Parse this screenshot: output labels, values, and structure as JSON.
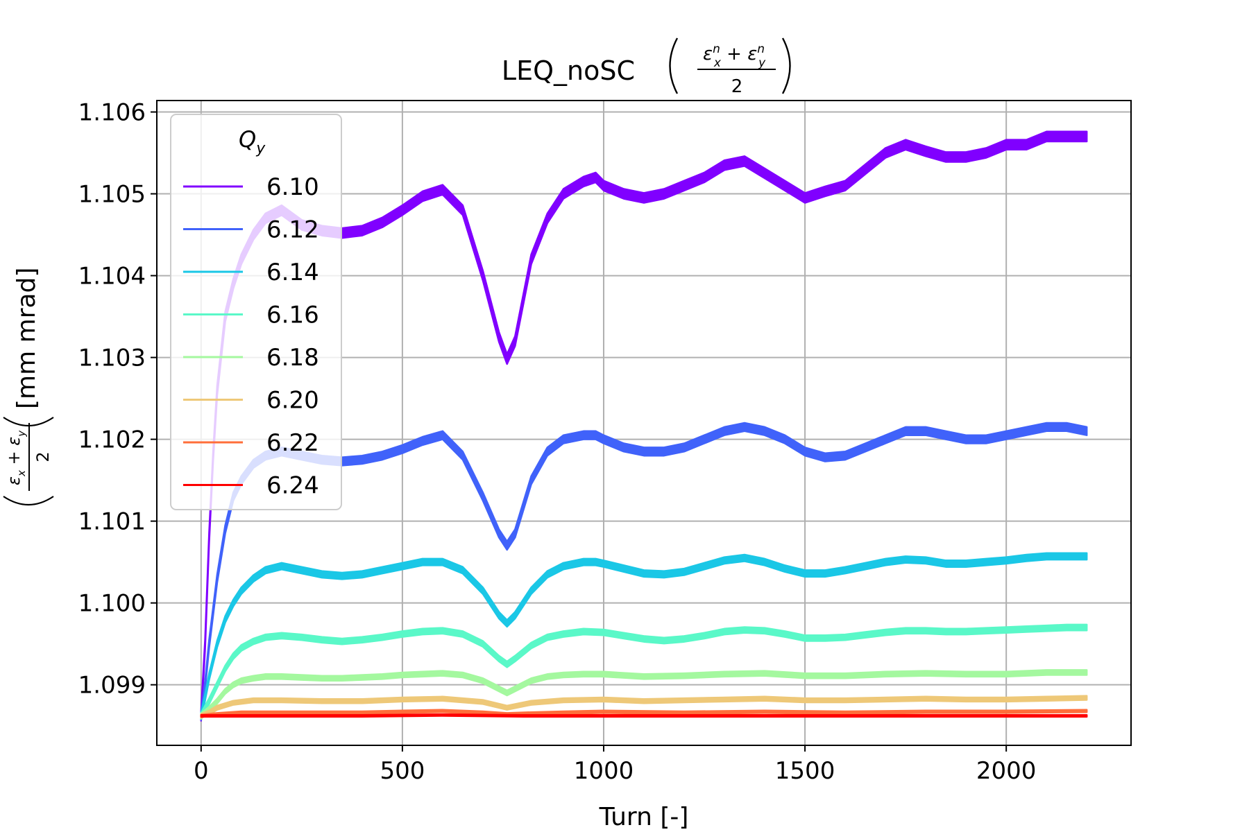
{
  "chart_data": {
    "type": "line",
    "title_main": "LEQ_noSC",
    "xlabel": "Turn [-]",
    "ylabel_unit": "[mm mrad]",
    "xlim": [
      -110,
      2310
    ],
    "ylim": [
      1.09826,
      1.10614
    ],
    "xticks": [
      0,
      500,
      1000,
      1500,
      2000
    ],
    "xtick_labels": [
      "0",
      "500",
      "1000",
      "1500",
      "2000"
    ],
    "yticks": [
      1.099,
      1.1,
      1.101,
      1.102,
      1.103,
      1.104,
      1.105,
      1.106
    ],
    "ytick_labels": [
      "1.099",
      "1.100",
      "1.101",
      "1.102",
      "1.103",
      "1.104",
      "1.105",
      "1.106"
    ],
    "grid": true,
    "legend": {
      "title": "Q",
      "title_subscript": "y",
      "placement": "upper-left"
    },
    "series": [
      {
        "name": "6.10",
        "color": "#8000ff",
        "band": 0.00012,
        "x": [
          0,
          10,
          20,
          30,
          40,
          60,
          80,
          100,
          130,
          160,
          200,
          250,
          300,
          350,
          400,
          450,
          500,
          550,
          600,
          650,
          700,
          740,
          760,
          780,
          820,
          860,
          900,
          950,
          980,
          1000,
          1050,
          1100,
          1150,
          1200,
          1250,
          1300,
          1350,
          1400,
          1450,
          1500,
          1550,
          1600,
          1650,
          1700,
          1750,
          1800,
          1850,
          1900,
          1950,
          2000,
          2050,
          2100,
          2150,
          2200
        ],
        "y": [
          1.09862,
          1.0995,
          1.1008,
          1.1018,
          1.1026,
          1.1035,
          1.1039,
          1.1042,
          1.1045,
          1.1047,
          1.1048,
          1.10462,
          1.10455,
          1.10452,
          1.10455,
          1.10465,
          1.1048,
          1.10497,
          1.10505,
          1.1048,
          1.104,
          1.10325,
          1.10298,
          1.1032,
          1.1042,
          1.1047,
          1.105,
          1.10515,
          1.1052,
          1.1051,
          1.105,
          1.10495,
          1.105,
          1.1051,
          1.1052,
          1.10535,
          1.1054,
          1.10525,
          1.1051,
          1.10495,
          1.10503,
          1.1051,
          1.1053,
          1.1055,
          1.1056,
          1.10552,
          1.10545,
          1.10545,
          1.1055,
          1.1056,
          1.1056,
          1.1057,
          1.1057,
          1.1057
        ]
      },
      {
        "name": "6.12",
        "color": "#4062fa",
        "band": 0.0001,
        "x": [
          0,
          10,
          20,
          30,
          40,
          60,
          80,
          100,
          130,
          160,
          200,
          250,
          300,
          350,
          400,
          450,
          500,
          550,
          600,
          650,
          700,
          740,
          760,
          780,
          820,
          860,
          900,
          950,
          980,
          1000,
          1050,
          1100,
          1150,
          1200,
          1250,
          1300,
          1350,
          1400,
          1450,
          1500,
          1550,
          1600,
          1650,
          1700,
          1750,
          1800,
          1850,
          1900,
          1950,
          2000,
          2050,
          2100,
          2150,
          2200
        ],
        "y": [
          1.09862,
          1.099,
          1.0995,
          1.0999,
          1.1003,
          1.1009,
          1.1013,
          1.1015,
          1.1017,
          1.1018,
          1.10185,
          1.1018,
          1.10175,
          1.10173,
          1.10175,
          1.1018,
          1.10188,
          1.10198,
          1.10205,
          1.1018,
          1.1013,
          1.10085,
          1.1007,
          1.10085,
          1.1015,
          1.10185,
          1.102,
          1.10205,
          1.10205,
          1.102,
          1.1019,
          1.10185,
          1.10185,
          1.1019,
          1.102,
          1.1021,
          1.10215,
          1.1021,
          1.102,
          1.10185,
          1.10178,
          1.1018,
          1.1019,
          1.102,
          1.1021,
          1.1021,
          1.10205,
          1.102,
          1.102,
          1.10205,
          1.1021,
          1.10215,
          1.10215,
          1.1021
        ]
      },
      {
        "name": "6.14",
        "color": "#1ac7e6",
        "band": 8e-05,
        "x": [
          0,
          10,
          20,
          30,
          40,
          60,
          80,
          100,
          130,
          160,
          200,
          250,
          300,
          350,
          400,
          450,
          500,
          550,
          600,
          650,
          700,
          740,
          760,
          780,
          820,
          860,
          900,
          950,
          980,
          1000,
          1050,
          1100,
          1150,
          1200,
          1250,
          1300,
          1350,
          1400,
          1450,
          1500,
          1550,
          1600,
          1650,
          1700,
          1750,
          1800,
          1850,
          1900,
          1950,
          2000,
          2050,
          2100,
          2150,
          2200
        ],
        "y": [
          1.09862,
          1.09885,
          1.0991,
          1.0993,
          1.0995,
          1.0998,
          1.1,
          1.10015,
          1.1003,
          1.1004,
          1.10045,
          1.1004,
          1.10035,
          1.10033,
          1.10035,
          1.1004,
          1.10045,
          1.1005,
          1.1005,
          1.1004,
          1.10015,
          1.09985,
          1.09975,
          1.09985,
          1.10015,
          1.10035,
          1.10045,
          1.1005,
          1.1005,
          1.10048,
          1.10042,
          1.10036,
          1.10035,
          1.10038,
          1.10045,
          1.10052,
          1.10055,
          1.1005,
          1.10042,
          1.10036,
          1.10036,
          1.1004,
          1.10045,
          1.1005,
          1.10053,
          1.10052,
          1.10048,
          1.10048,
          1.1005,
          1.10052,
          1.10055,
          1.10057,
          1.10057,
          1.10057
        ]
      },
      {
        "name": "6.16",
        "color": "#5af8c8",
        "band": 7e-05,
        "x": [
          0,
          20,
          40,
          60,
          80,
          100,
          130,
          160,
          200,
          250,
          300,
          350,
          400,
          450,
          500,
          550,
          600,
          650,
          700,
          740,
          760,
          780,
          820,
          860,
          900,
          950,
          1000,
          1050,
          1100,
          1150,
          1200,
          1250,
          1300,
          1350,
          1400,
          1450,
          1500,
          1550,
          1600,
          1650,
          1700,
          1750,
          1800,
          1850,
          1900,
          1950,
          2000,
          2050,
          2100,
          2150,
          2200
        ],
        "y": [
          1.09862,
          1.0988,
          1.099,
          1.0992,
          1.09935,
          1.09945,
          1.09953,
          1.09958,
          1.0996,
          1.09958,
          1.09955,
          1.09953,
          1.09955,
          1.09958,
          1.09962,
          1.09965,
          1.09966,
          1.09962,
          1.0995,
          1.09932,
          1.09925,
          1.09932,
          1.09948,
          1.09958,
          1.09962,
          1.09965,
          1.09964,
          1.0996,
          1.09956,
          1.09954,
          1.09956,
          1.0996,
          1.09965,
          1.09967,
          1.09966,
          1.09962,
          1.09957,
          1.09957,
          1.09958,
          1.09961,
          1.09964,
          1.09966,
          1.09966,
          1.09965,
          1.09965,
          1.09966,
          1.09967,
          1.09968,
          1.09969,
          1.0997,
          1.0997
        ]
      },
      {
        "name": "6.18",
        "color": "#a4f89f",
        "band": 6e-05,
        "x": [
          0,
          20,
          40,
          60,
          80,
          100,
          130,
          160,
          200,
          250,
          300,
          350,
          400,
          450,
          500,
          550,
          600,
          650,
          700,
          740,
          760,
          780,
          820,
          860,
          900,
          950,
          1000,
          1100,
          1200,
          1300,
          1400,
          1500,
          1600,
          1700,
          1800,
          1900,
          2000,
          2100,
          2200
        ],
        "y": [
          1.09862,
          1.0987,
          1.0988,
          1.09892,
          1.099,
          1.09905,
          1.09908,
          1.0991,
          1.0991,
          1.09909,
          1.09908,
          1.09908,
          1.09909,
          1.0991,
          1.09912,
          1.09913,
          1.09914,
          1.09912,
          1.09905,
          1.09895,
          1.0989,
          1.09895,
          1.09905,
          1.0991,
          1.09912,
          1.09913,
          1.09913,
          1.0991,
          1.09911,
          1.09913,
          1.09914,
          1.09911,
          1.09911,
          1.09913,
          1.09914,
          1.09913,
          1.09913,
          1.09915,
          1.09915
        ]
      },
      {
        "name": "6.20",
        "color": "#eec878",
        "band": 5e-05,
        "x": [
          0,
          20,
          40,
          80,
          130,
          200,
          300,
          400,
          500,
          600,
          700,
          760,
          820,
          900,
          1000,
          1100,
          1200,
          1300,
          1400,
          1500,
          1600,
          1700,
          1800,
          1900,
          2000,
          2100,
          2200
        ],
        "y": [
          1.09862,
          1.09866,
          1.09872,
          1.09878,
          1.09881,
          1.09881,
          1.0988,
          1.0988,
          1.09882,
          1.09883,
          1.09879,
          1.09872,
          1.09878,
          1.09881,
          1.09882,
          1.0988,
          1.09881,
          1.09882,
          1.09883,
          1.09881,
          1.09881,
          1.09882,
          1.09883,
          1.09882,
          1.09882,
          1.09883,
          1.09884
        ]
      },
      {
        "name": "6.22",
        "color": "#ff6e3a",
        "band": 3e-05,
        "x": [
          0,
          40,
          100,
          200,
          300,
          400,
          500,
          600,
          700,
          760,
          820,
          900,
          1000,
          1200,
          1400,
          1600,
          1800,
          2000,
          2200
        ],
        "y": [
          1.09862,
          1.09864,
          1.09866,
          1.09866,
          1.09866,
          1.09866,
          1.09867,
          1.09868,
          1.09866,
          1.09864,
          1.09865,
          1.09866,
          1.09867,
          1.09866,
          1.09867,
          1.09866,
          1.09867,
          1.09867,
          1.09868
        ]
      },
      {
        "name": "6.24",
        "color": "#ff0000",
        "band": 2e-05,
        "x": [
          0,
          200,
          400,
          600,
          800,
          1000,
          1200,
          1400,
          1600,
          1800,
          2000,
          2200
        ],
        "y": [
          1.09862,
          1.09862,
          1.09862,
          1.09863,
          1.09862,
          1.09862,
          1.09862,
          1.09862,
          1.09862,
          1.09862,
          1.09862,
          1.09862
        ]
      }
    ]
  }
}
